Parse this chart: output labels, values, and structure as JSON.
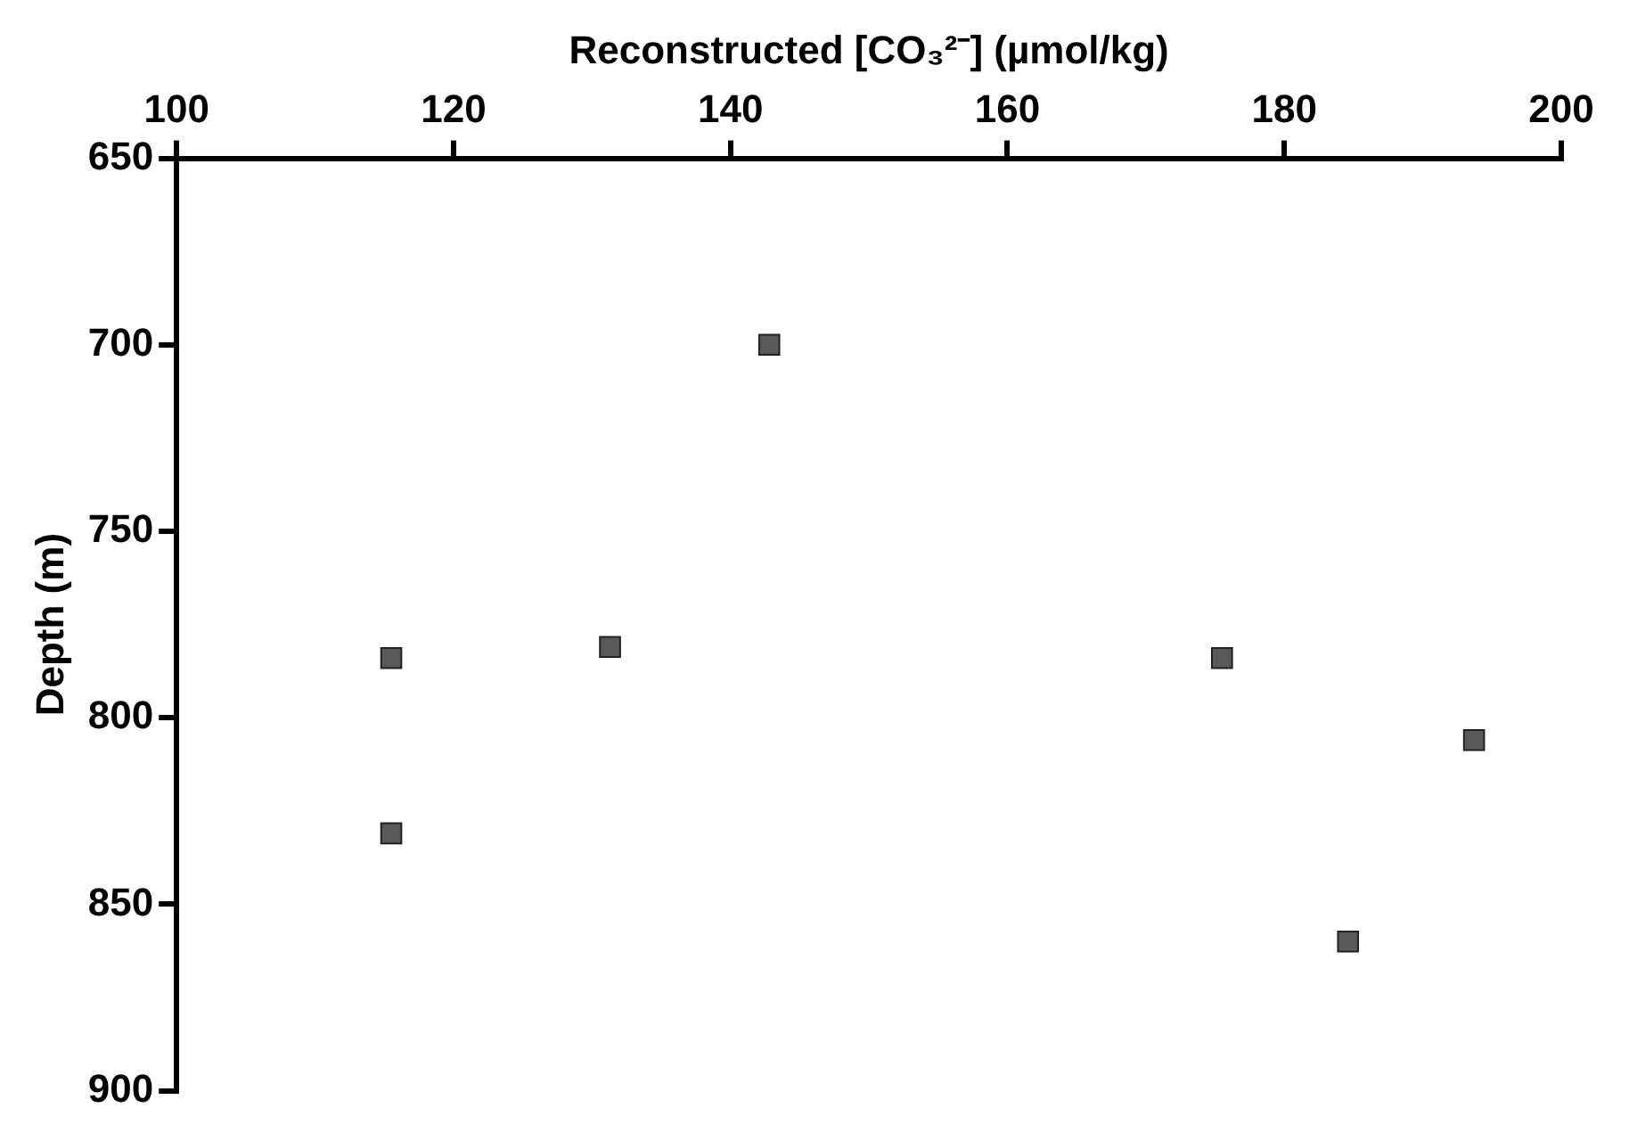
{
  "chart_data": {
    "type": "scatter",
    "xlabel": "Reconstructed [CO₃²⁻] (µmol/kg)",
    "ylabel": "Depth (m)",
    "x": [
      142.8,
      115.5,
      115.5,
      131.3,
      175.5,
      193.7,
      184.6
    ],
    "values": [
      700,
      784,
      831,
      781,
      784,
      806,
      860
    ],
    "color": "#595959",
    "marker": "square",
    "xlim": [
      100,
      200
    ],
    "xticks": [
      100,
      120,
      140,
      160,
      180,
      200
    ],
    "ylim": [
      900,
      650
    ],
    "yticks": [
      650,
      700,
      750,
      800,
      850,
      900
    ],
    "grid": false,
    "legend": false
  }
}
